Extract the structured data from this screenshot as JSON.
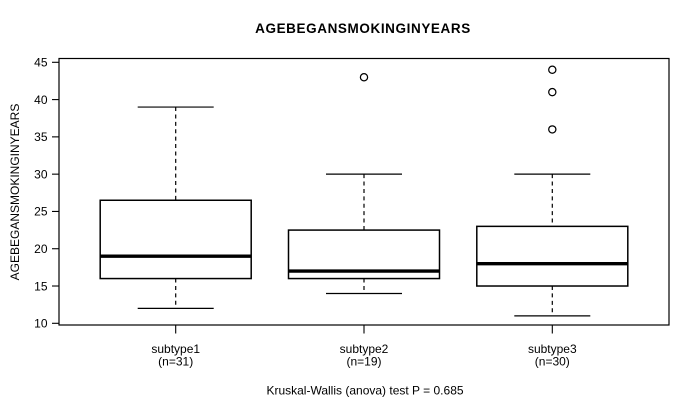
{
  "colors": {
    "foreground": "#000000",
    "background": "#ffffff"
  },
  "chart_data": {
    "type": "boxplot",
    "title": "AGEBEGANSMOKINGINYEARS",
    "ylabel": "AGEBEGANSMOKINGINYEARS",
    "xlabel": "",
    "caption": "Kruskal-Wallis (anova) test P = 0.685",
    "ylim": [
      10,
      45
    ],
    "yticks": [
      10,
      15,
      20,
      25,
      30,
      35,
      40,
      45
    ],
    "grid": false,
    "legend": null,
    "groups": [
      {
        "label": "subtype1",
        "count_label": "(n=31)",
        "n": 31,
        "whisker_low": 12,
        "q1": 16,
        "median": 19,
        "q3": 26.5,
        "whisker_high": 39,
        "outliers": []
      },
      {
        "label": "subtype2",
        "count_label": "(n=19)",
        "n": 19,
        "whisker_low": 14,
        "q1": 16,
        "median": 17,
        "q3": 22.5,
        "whisker_high": 30,
        "outliers": [
          43
        ]
      },
      {
        "label": "subtype3",
        "count_label": "(n=30)",
        "n": 30,
        "whisker_low": 11,
        "q1": 15,
        "median": 18,
        "q3": 23,
        "whisker_high": 30,
        "outliers": [
          36,
          41,
          44
        ]
      }
    ]
  }
}
